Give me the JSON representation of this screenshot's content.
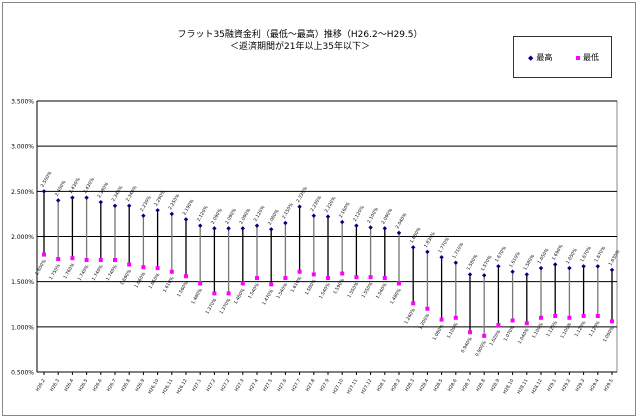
{
  "chart_data": {
    "type": "line",
    "title": "フラット35融資金利（最低～最高）推移（H26.2～H29.5）",
    "subtitle": "＜返済期間が21年以上35年以下＞",
    "xlabel": "",
    "ylabel": "",
    "ylim": [
      0.5,
      3.5
    ],
    "yticks": [
      "0.500%",
      "1.000%",
      "1.500%",
      "2.000%",
      "2.500%",
      "3.000%",
      "3.500%"
    ],
    "grid": true,
    "legend_placement": "top-right",
    "categories": [
      "H26.2",
      "H26.3",
      "H26.4",
      "H26.5",
      "H26.6",
      "H26.7",
      "H26.8",
      "H26.9",
      "H26.10",
      "H26.11",
      "H26.12",
      "H27.1",
      "H27.2",
      "H27.2",
      "H27.3",
      "H27.4",
      "H27.5",
      "H27.6",
      "H27.7",
      "H27.8",
      "H27.9",
      "H27.10",
      "H27.11",
      "H27.12",
      "H28.1",
      "H28.2",
      "H28.3",
      "H28.4",
      "H28.5",
      "H28.6",
      "H28.7",
      "H28.8",
      "H28.9",
      "H28.10",
      "H28.11",
      "H28.12",
      "H29.1",
      "H29.2",
      "H29.3",
      "H29.4",
      "H29.5"
    ],
    "series": [
      {
        "name": "最高",
        "color": "#000080",
        "marker": "diamond",
        "values": [
          2.5,
          2.4,
          2.43,
          2.43,
          2.38,
          2.34,
          2.34,
          2.23,
          2.29,
          2.25,
          2.19,
          2.12,
          2.09,
          2.09,
          2.09,
          2.12,
          2.08,
          2.15,
          2.33,
          2.23,
          2.22,
          2.16,
          2.12,
          2.1,
          2.09,
          2.04,
          1.88,
          1.83,
          1.77,
          1.71,
          1.58,
          1.57,
          1.67,
          1.61,
          1.58,
          1.65,
          1.69,
          1.65,
          1.67,
          1.67,
          1.63
        ]
      },
      {
        "name": "最低",
        "color": "#FF00FF",
        "marker": "square",
        "values": [
          1.8,
          1.75,
          1.76,
          1.74,
          1.74,
          1.74,
          1.69,
          1.66,
          1.65,
          1.61,
          1.56,
          1.48,
          1.37,
          1.37,
          1.48,
          1.54,
          1.47,
          1.54,
          1.61,
          1.58,
          1.54,
          1.59,
          1.55,
          1.55,
          1.54,
          1.48,
          1.26,
          1.2,
          1.08,
          1.1,
          0.94,
          0.9,
          1.02,
          1.07,
          1.04,
          1.1,
          1.12,
          1.1,
          1.12,
          1.12,
          1.06
        ]
      }
    ]
  }
}
